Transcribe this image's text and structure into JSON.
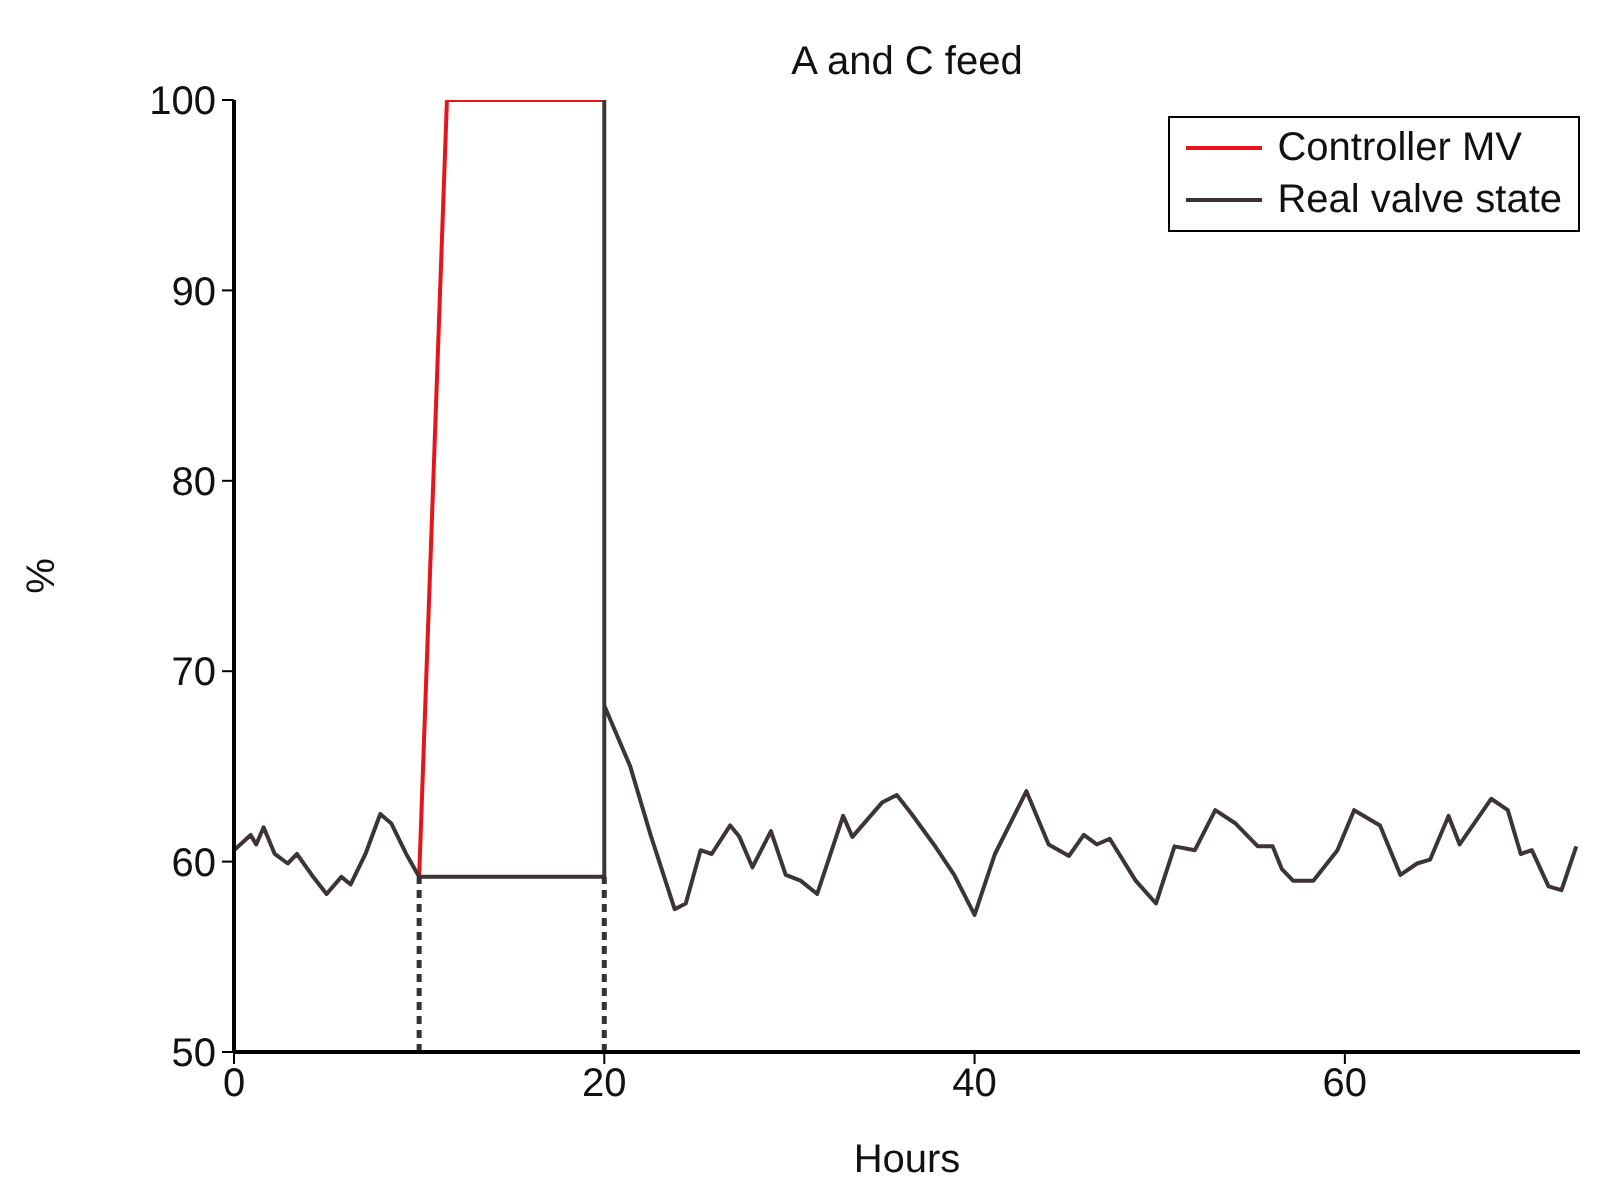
{
  "chart_data": {
    "type": "line",
    "title": "A and C feed",
    "xlabel": "Hours",
    "ylabel": "%",
    "xlim": [
      0,
      72.7
    ],
    "xticks": [
      0,
      20,
      40,
      60
    ],
    "ylim": [
      50,
      100
    ],
    "yticks": [
      50,
      60,
      70,
      80,
      90,
      100
    ],
    "grid": false,
    "legend": "top right",
    "marker": "none",
    "line_style": "solid",
    "series": [
      {
        "name": "Controller MV",
        "color": "#e8141c",
        "x": [
          10,
          11.5,
          20
        ],
        "values": [
          59.2,
          100,
          100
        ]
      },
      {
        "name": "Real valve state",
        "color": "#3d3436",
        "x": [
          0,
          0.9,
          1.2,
          1.6,
          2.2,
          2.9,
          3.4,
          4.2,
          5.0,
          5.8,
          6.3,
          7.1,
          7.9,
          8.5,
          9.3,
          10,
          20,
          20,
          20,
          21.4,
          22.5,
          23.8,
          24.4,
          25.2,
          25.8,
          26.8,
          27.3,
          28,
          29,
          29.8,
          30.6,
          31.5,
          32.9,
          33.4,
          35,
          35.8,
          36.6,
          37.8,
          38.9,
          40,
          41.1,
          42.8,
          44,
          45.1,
          45.9,
          46.6,
          47.3,
          48.7,
          49.8,
          50.8,
          51.9,
          53,
          54.1,
          55.3,
          56.1,
          56.6,
          57.2,
          58.3,
          59.6,
          60.5,
          61.9,
          63,
          63.9,
          64.6,
          65.6,
          66.2,
          67.9,
          68.8,
          69.5,
          70.1,
          71,
          71.7,
          72.5
        ],
        "values": [
          60.6,
          61.4,
          60.9,
          61.8,
          60.4,
          59.9,
          60.4,
          59.3,
          58.3,
          59.2,
          58.8,
          60.4,
          62.5,
          62,
          60.4,
          59.2,
          59.2,
          100,
          68.2,
          65,
          61.4,
          57.5,
          57.8,
          60.6,
          60.4,
          61.9,
          61.3,
          59.7,
          61.6,
          59.3,
          59,
          58.3,
          62.4,
          61.3,
          63.1,
          63.5,
          62.5,
          60.9,
          59.3,
          57.2,
          60.4,
          63.7,
          60.9,
          60.3,
          61.4,
          60.9,
          61.2,
          59,
          57.8,
          60.8,
          60.6,
          62.7,
          62,
          60.8,
          60.8,
          59.6,
          59,
          59,
          60.6,
          62.7,
          61.9,
          59.3,
          59.9,
          60.1,
          62.4,
          60.9,
          63.3,
          62.7,
          60.4,
          60.6,
          58.7,
          58.5,
          60.8
        ]
      },
      {
        "color": "#333333",
        "line_style": "dashed",
        "x": [
          10,
          10
        ],
        "values": [
          50,
          59.2
        ]
      },
      {
        "color": "#333333",
        "line_style": "dashed",
        "x": [
          20,
          20
        ],
        "values": [
          50,
          59.2
        ]
      }
    ]
  }
}
